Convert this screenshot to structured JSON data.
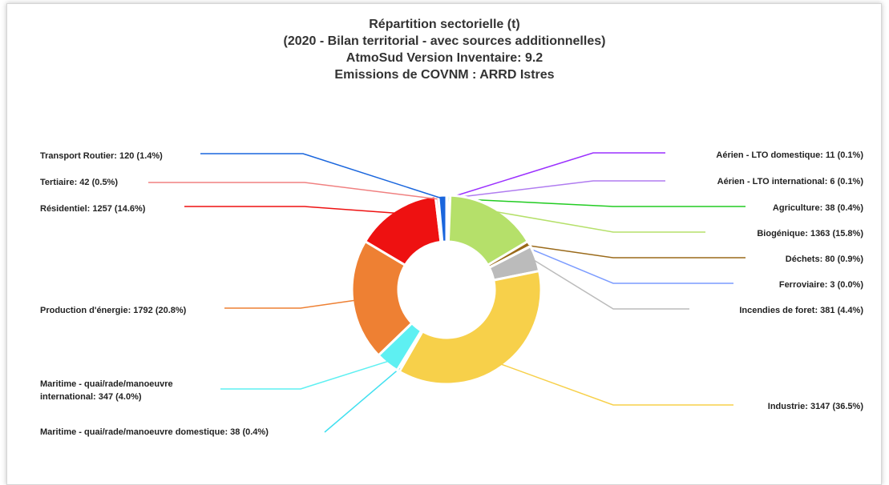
{
  "chart_data": {
    "type": "donut",
    "title": [
      "Répartition sectorielle (t)",
      "(2020 - Bilan territorial - avec sources additionnelles)",
      "AtmoSud Version Inventaire: 9.2",
      "Emissions de COVNM : ARRD Istres"
    ],
    "categories": [
      "Aérien - LTO domestique: 11 (0.1%)",
      "Aérien - LTO international: 6 (0.1%)",
      "Agriculture: 38 (0.4%)",
      "Biogénique: 1363 (15.8%)",
      "Déchets: 80 (0.9%)",
      "Ferroviaire: 3 (0.0%)",
      "Incendies de foret: 381 (4.4%)",
      "Industrie: 3147 (36.5%)",
      "Maritime - quai/rade/manoeuvre domestique: 38 (0.4%)",
      "Maritime - quai/rade/manoeuvre international: 347 (4.0%)",
      "Production d'énergie: 1792 (20.8%)",
      "Résidentiel: 1257 (14.6%)",
      "Tertiaire: 42 (0.5%)",
      "Transport Routier: 120 (1.4%)"
    ],
    "values": [
      11,
      6,
      38,
      1363,
      80,
      3,
      381,
      3147,
      38,
      347,
      1792,
      1257,
      42,
      120
    ],
    "colors": [
      "#9b30ff",
      "#b07cf0",
      "#22cc22",
      "#b5e06a",
      "#9a6a1a",
      "#7c9cff",
      "#bbbbbb",
      "#f7d04a",
      "#40e0f0",
      "#5ef0f2",
      "#ee8033",
      "#ee1111",
      "#f08080",
      "#1a66dd"
    ]
  }
}
